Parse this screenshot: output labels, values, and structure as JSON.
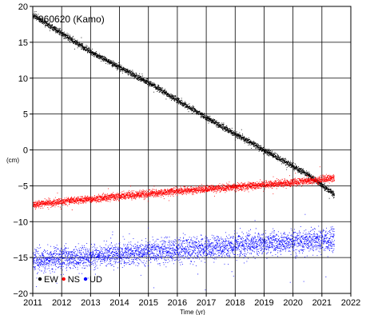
{
  "chart_data": {
    "type": "scatter",
    "station_label": "960620 (Kamo)",
    "xlabel": "Time (yr)",
    "ylabel": "",
    "unit_label": "(cm)",
    "xlim": [
      2011,
      2022
    ],
    "ylim": [
      -20,
      20
    ],
    "x_ticks": [
      2011,
      2012,
      2013,
      2014,
      2015,
      2016,
      2017,
      2018,
      2019,
      2020,
      2021,
      2022
    ],
    "y_ticks": [
      -20,
      -15,
      -10,
      -5,
      0,
      5,
      10,
      15,
      20
    ],
    "grid": true,
    "legend_position": "bottom-left",
    "series": [
      {
        "name": "EW",
        "color": "#000000",
        "keypoints": [
          [
            2011.0,
            18.8
          ],
          [
            2013.0,
            13.7
          ],
          [
            2015.0,
            9.4
          ],
          [
            2017.0,
            4.5
          ],
          [
            2019.0,
            0.0
          ],
          [
            2020.5,
            -3.4
          ],
          [
            2021.4,
            -6.1
          ]
        ],
        "scatter": 0.2
      },
      {
        "name": "NS",
        "color": "#ff0000",
        "keypoints": [
          [
            2011.0,
            -7.6
          ],
          [
            2014.0,
            -6.4
          ],
          [
            2017.0,
            -5.4
          ],
          [
            2020.0,
            -4.5
          ],
          [
            2021.4,
            -3.9
          ]
        ],
        "scatter": 0.25
      },
      {
        "name": "UD",
        "color": "#0000ff",
        "keypoints": [
          [
            2011.0,
            -15.4
          ],
          [
            2013.0,
            -14.8
          ],
          [
            2016.0,
            -13.9
          ],
          [
            2019.0,
            -13.0
          ],
          [
            2021.4,
            -12.5
          ]
        ],
        "scatter": 0.8
      }
    ],
    "x_end": 2021.42,
    "points_per_series": 3700
  }
}
